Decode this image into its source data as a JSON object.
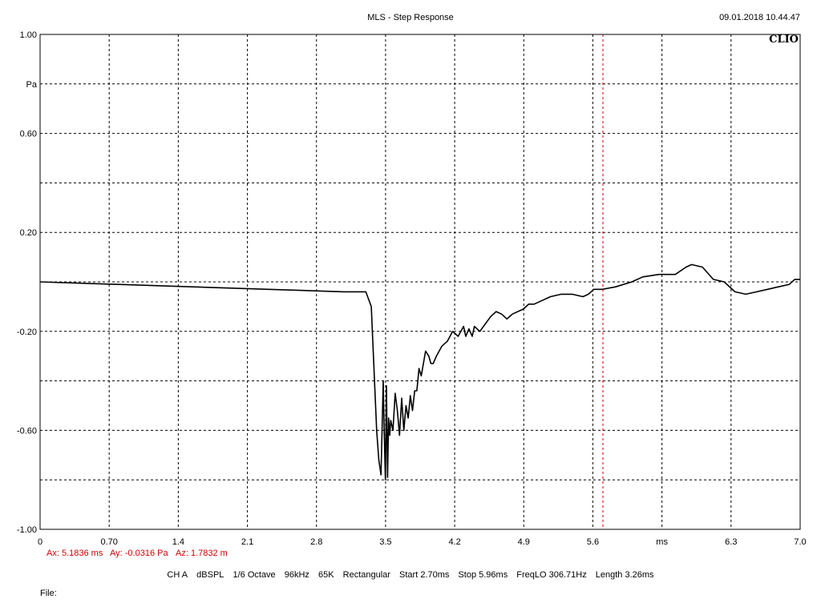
{
  "header": {
    "title": "MLS - Step Response",
    "timestamp": "09.01.2018 10.44.47",
    "brand": "CLIO"
  },
  "cursor": {
    "ax_text": "Ax: 5.1836 ms",
    "ay_text": "Ay: -0.0316 Pa",
    "az_text": "Az: 1.7832 m",
    "x_ms": 5.1836,
    "color": "#cc0000"
  },
  "settings": {
    "channel": "CH A",
    "units": "dBSPL",
    "smoothing": "1/6 Octave",
    "sample_rate": "96kHz",
    "size": "65K",
    "window": "Rectangular",
    "start": "Start 2.70ms",
    "stop": "Stop 5.96ms",
    "freq_lo": "FreqLO 306.71Hz",
    "length": "Length 3.26ms"
  },
  "file_label": "File:",
  "chart_data": {
    "type": "line",
    "title": "MLS - Step Response",
    "xlabel": "ms",
    "ylabel": "Pa",
    "xlim": [
      0,
      7.0
    ],
    "ylim": [
      -1.0,
      1.0
    ],
    "grid": true,
    "x_ticks": [
      "0",
      "0.70",
      "1.4",
      "2.1",
      "2.8",
      "3.5",
      "4.2",
      "4.9",
      "5.6",
      "ms",
      "6.3",
      "7.0"
    ],
    "y_ticks": [
      "1.00",
      "Pa",
      "0.60",
      "",
      "0.20",
      "",
      "-0.20",
      "",
      "-0.60",
      "",
      "-1.00"
    ],
    "series": [
      {
        "color": "#000000",
        "x": [
          0,
          0.7,
          1.4,
          2.1,
          2.8,
          3.0,
          3.05,
          3.08,
          3.1,
          3.12,
          3.14,
          3.16,
          3.17,
          3.18,
          3.19,
          3.2,
          3.21,
          3.22,
          3.23,
          3.25,
          3.27,
          3.29,
          3.31,
          3.33,
          3.35,
          3.37,
          3.39,
          3.41,
          3.43,
          3.45,
          3.47,
          3.49,
          3.51,
          3.53,
          3.55,
          3.58,
          3.6,
          3.62,
          3.65,
          3.7,
          3.75,
          3.8,
          3.85,
          3.9,
          3.92,
          3.95,
          3.98,
          4.0,
          4.05,
          4.1,
          4.15,
          4.2,
          4.25,
          4.3,
          4.35,
          4.45,
          4.5,
          4.55,
          4.6,
          4.7,
          4.8,
          4.9,
          5.0,
          5.05,
          5.1,
          5.18,
          5.3,
          5.45,
          5.55,
          5.7,
          5.85,
          5.95,
          6.0,
          6.1,
          6.2,
          6.3,
          6.4,
          6.5,
          6.6,
          6.7,
          6.8,
          6.9,
          6.95,
          7.0
        ],
        "y": [
          0.0,
          -0.01,
          -0.02,
          -0.03,
          -0.04,
          -0.04,
          -0.1,
          -0.4,
          -0.6,
          -0.72,
          -0.78,
          -0.4,
          -0.62,
          -0.8,
          -0.42,
          -0.79,
          -0.55,
          -0.62,
          -0.56,
          -0.6,
          -0.45,
          -0.52,
          -0.62,
          -0.47,
          -0.6,
          -0.5,
          -0.55,
          -0.46,
          -0.52,
          -0.44,
          -0.44,
          -0.35,
          -0.38,
          -0.33,
          -0.28,
          -0.3,
          -0.33,
          -0.33,
          -0.3,
          -0.26,
          -0.24,
          -0.2,
          -0.22,
          -0.18,
          -0.22,
          -0.19,
          -0.22,
          -0.18,
          -0.2,
          -0.17,
          -0.14,
          -0.12,
          -0.13,
          -0.15,
          -0.13,
          -0.11,
          -0.09,
          -0.09,
          -0.08,
          -0.06,
          -0.05,
          -0.05,
          -0.06,
          -0.05,
          -0.03,
          -0.03,
          -0.02,
          0.0,
          0.02,
          0.03,
          0.03,
          0.06,
          0.07,
          0.06,
          0.01,
          0.0,
          -0.04,
          -0.05,
          -0.04,
          -0.03,
          -0.02,
          -0.01,
          0.01,
          0.01
        ]
      }
    ]
  }
}
